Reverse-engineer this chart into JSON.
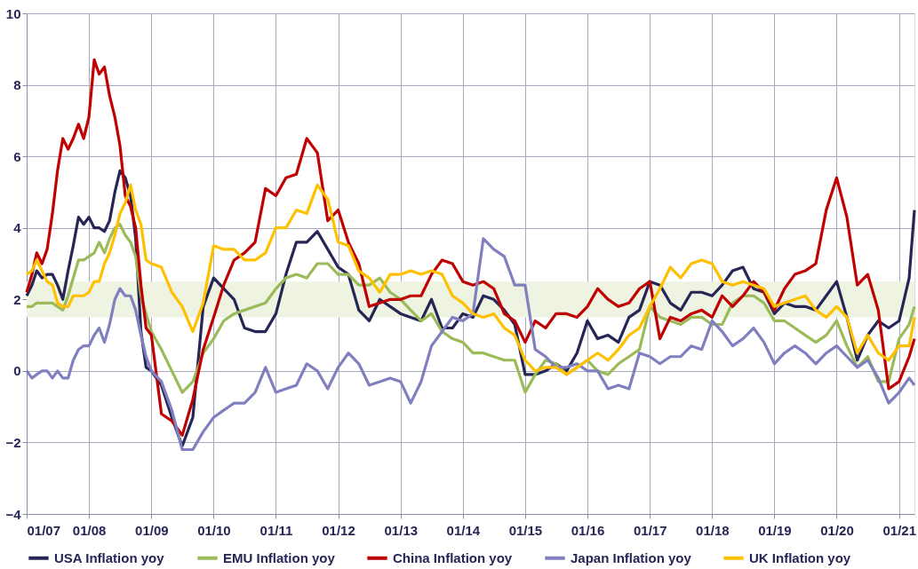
{
  "chart_data": {
    "type": "line",
    "x": [
      "2007-01",
      "2007-02",
      "2007-03",
      "2007-04",
      "2007-05",
      "2007-06",
      "2007-07",
      "2007-08",
      "2007-09",
      "2007-10",
      "2007-11",
      "2007-12",
      "2008-01",
      "2008-02",
      "2008-03",
      "2008-04",
      "2008-05",
      "2008-06",
      "2008-07",
      "2008-08",
      "2008-09",
      "2008-10",
      "2008-11",
      "2008-12",
      "2009-01",
      "2009-03",
      "2009-05",
      "2009-07",
      "2009-09",
      "2009-11",
      "2010-01",
      "2010-03",
      "2010-05",
      "2010-07",
      "2010-09",
      "2010-11",
      "2011-01",
      "2011-03",
      "2011-05",
      "2011-07",
      "2011-09",
      "2011-11",
      "2012-01",
      "2012-03",
      "2012-05",
      "2012-07",
      "2012-09",
      "2012-11",
      "2013-01",
      "2013-03",
      "2013-05",
      "2013-07",
      "2013-09",
      "2013-11",
      "2014-01",
      "2014-03",
      "2014-05",
      "2014-07",
      "2014-09",
      "2014-11",
      "2015-01",
      "2015-03",
      "2015-05",
      "2015-07",
      "2015-09",
      "2015-11",
      "2016-01",
      "2016-03",
      "2016-05",
      "2016-07",
      "2016-09",
      "2016-11",
      "2017-01",
      "2017-03",
      "2017-05",
      "2017-07",
      "2017-09",
      "2017-11",
      "2018-01",
      "2018-03",
      "2018-05",
      "2018-07",
      "2018-09",
      "2018-11",
      "2019-01",
      "2019-03",
      "2019-05",
      "2019-07",
      "2019-09",
      "2019-11",
      "2020-01",
      "2020-03",
      "2020-05",
      "2020-07",
      "2020-09",
      "2020-11",
      "2021-01",
      "2021-03",
      "2021-04"
    ],
    "series": [
      {
        "name": "USA Inflation yoy",
        "color": "#262656",
        "values": [
          2.1,
          2.4,
          2.8,
          2.6,
          2.7,
          2.7,
          2.4,
          2.0,
          2.8,
          3.5,
          4.3,
          4.1,
          4.3,
          4.0,
          4.0,
          3.9,
          4.2,
          5.0,
          5.6,
          5.4,
          4.9,
          3.7,
          1.1,
          0.1,
          0.0,
          -0.4,
          -1.3,
          -2.1,
          -1.3,
          1.8,
          2.6,
          2.3,
          2.0,
          1.2,
          1.1,
          1.1,
          1.6,
          2.7,
          3.6,
          3.6,
          3.9,
          3.4,
          2.9,
          2.7,
          1.7,
          1.4,
          2.0,
          1.8,
          1.6,
          1.5,
          1.4,
          2.0,
          1.2,
          1.2,
          1.6,
          1.5,
          2.1,
          2.0,
          1.7,
          1.3,
          -0.1,
          -0.1,
          0.0,
          0.2,
          0.0,
          0.5,
          1.4,
          0.9,
          1.0,
          0.8,
          1.5,
          1.7,
          2.5,
          2.4,
          1.9,
          1.7,
          2.2,
          2.2,
          2.1,
          2.4,
          2.8,
          2.9,
          2.3,
          2.2,
          1.6,
          1.9,
          1.8,
          1.8,
          1.7,
          2.1,
          2.5,
          1.5,
          0.3,
          1.0,
          1.4,
          1.2,
          1.4,
          2.6,
          4.5
        ]
      },
      {
        "name": "EMU Inflation yoy",
        "color": "#9bbb59",
        "values": [
          1.8,
          1.8,
          1.9,
          1.9,
          1.9,
          1.9,
          1.8,
          1.7,
          2.1,
          2.6,
          3.1,
          3.1,
          3.2,
          3.3,
          3.6,
          3.3,
          3.7,
          4.0,
          4.1,
          3.8,
          3.6,
          3.2,
          2.1,
          1.6,
          1.1,
          0.6,
          0.0,
          -0.6,
          -0.3,
          0.5,
          0.9,
          1.4,
          1.6,
          1.7,
          1.8,
          1.9,
          2.3,
          2.6,
          2.7,
          2.6,
          3.0,
          3.0,
          2.7,
          2.7,
          2.4,
          2.4,
          2.6,
          2.2,
          2.0,
          1.7,
          1.4,
          1.6,
          1.1,
          0.9,
          0.8,
          0.5,
          0.5,
          0.4,
          0.3,
          0.3,
          -0.6,
          -0.1,
          0.3,
          0.2,
          -0.1,
          0.1,
          0.3,
          0.0,
          -0.1,
          0.2,
          0.4,
          0.6,
          1.8,
          1.5,
          1.4,
          1.3,
          1.5,
          1.5,
          1.3,
          1.3,
          1.9,
          2.1,
          2.1,
          1.9,
          1.4,
          1.4,
          1.2,
          1.0,
          0.8,
          1.0,
          1.4,
          0.7,
          0.1,
          0.4,
          -0.3,
          -0.3,
          0.9,
          1.3,
          1.8
        ]
      },
      {
        "name": "China Inflation yoy",
        "color": "#c00000",
        "values": [
          2.2,
          2.7,
          3.3,
          3.0,
          3.4,
          4.4,
          5.6,
          6.5,
          6.2,
          6.5,
          6.9,
          6.5,
          7.1,
          8.7,
          8.3,
          8.5,
          7.7,
          7.1,
          6.3,
          4.9,
          4.6,
          4.0,
          2.4,
          1.2,
          1.0,
          -1.2,
          -1.4,
          -1.8,
          -0.8,
          0.6,
          1.5,
          2.4,
          3.1,
          3.3,
          3.6,
          5.1,
          4.9,
          5.4,
          5.5,
          6.5,
          6.1,
          4.2,
          4.5,
          3.6,
          3.0,
          1.8,
          1.9,
          2.0,
          2.0,
          2.1,
          2.1,
          2.7,
          3.1,
          3.0,
          2.5,
          2.4,
          2.5,
          2.3,
          1.6,
          1.4,
          0.8,
          1.4,
          1.2,
          1.6,
          1.6,
          1.5,
          1.8,
          2.3,
          2.0,
          1.8,
          1.9,
          2.3,
          2.5,
          0.9,
          1.5,
          1.4,
          1.6,
          1.7,
          1.5,
          2.1,
          1.8,
          2.1,
          2.5,
          2.2,
          1.7,
          2.3,
          2.7,
          2.8,
          3.0,
          4.5,
          5.4,
          4.3,
          2.4,
          2.7,
          1.7,
          -0.5,
          -0.3,
          0.4,
          0.9
        ]
      },
      {
        "name": "Japan Inflation yoy",
        "color": "#8080c0",
        "values": [
          0.0,
          -0.2,
          -0.1,
          0.0,
          0.0,
          -0.2,
          0.0,
          -0.2,
          -0.2,
          0.3,
          0.6,
          0.7,
          0.7,
          1.0,
          1.2,
          0.8,
          1.3,
          2.0,
          2.3,
          2.1,
          2.1,
          1.7,
          1.0,
          0.4,
          0.0,
          -0.3,
          -1.1,
          -2.2,
          -2.2,
          -1.7,
          -1.3,
          -1.1,
          -0.9,
          -0.9,
          -0.6,
          0.1,
          -0.6,
          -0.5,
          -0.4,
          0.2,
          0.0,
          -0.5,
          0.1,
          0.5,
          0.2,
          -0.4,
          -0.3,
          -0.2,
          -0.3,
          -0.9,
          -0.3,
          0.7,
          1.1,
          1.5,
          1.4,
          1.6,
          3.7,
          3.4,
          3.2,
          2.4,
          2.4,
          0.6,
          0.4,
          0.1,
          0.1,
          0.2,
          0.0,
          0.0,
          -0.5,
          -0.4,
          -0.5,
          0.5,
          0.4,
          0.2,
          0.4,
          0.4,
          0.7,
          0.6,
          1.4,
          1.1,
          0.7,
          0.9,
          1.2,
          0.8,
          0.2,
          0.5,
          0.7,
          0.5,
          0.2,
          0.5,
          0.7,
          0.4,
          0.1,
          0.3,
          -0.2,
          -0.9,
          -0.6,
          -0.2,
          -0.4
        ]
      },
      {
        "name": "UK Inflation yoy",
        "color": "#ffc000",
        "values": [
          2.7,
          2.8,
          3.1,
          2.8,
          2.5,
          2.4,
          1.9,
          1.8,
          1.8,
          2.1,
          2.1,
          2.1,
          2.2,
          2.5,
          2.5,
          3.0,
          3.3,
          3.8,
          4.4,
          4.7,
          5.2,
          4.5,
          4.1,
          3.1,
          3.0,
          2.9,
          2.2,
          1.8,
          1.1,
          1.9,
          3.5,
          3.4,
          3.4,
          3.1,
          3.1,
          3.3,
          4.0,
          4.0,
          4.5,
          4.4,
          5.2,
          4.8,
          3.6,
          3.5,
          2.8,
          2.6,
          2.2,
          2.7,
          2.7,
          2.8,
          2.7,
          2.8,
          2.7,
          2.1,
          1.9,
          1.6,
          1.5,
          1.6,
          1.2,
          1.0,
          0.3,
          0.0,
          0.1,
          0.1,
          -0.1,
          0.1,
          0.3,
          0.5,
          0.3,
          0.6,
          1.0,
          1.2,
          1.8,
          2.3,
          2.9,
          2.6,
          3.0,
          3.1,
          3.0,
          2.5,
          2.4,
          2.5,
          2.4,
          2.3,
          1.8,
          1.9,
          2.0,
          2.1,
          1.7,
          1.5,
          1.8,
          1.5,
          0.5,
          1.0,
          0.5,
          0.3,
          0.7,
          0.7,
          1.5
        ]
      }
    ],
    "xlim": [
      "2007-01",
      "2021-04"
    ],
    "xticks": [
      {
        "value": "2007-01",
        "label": "01/07"
      },
      {
        "value": "2008-01",
        "label": "01/08"
      },
      {
        "value": "2009-01",
        "label": "01/09"
      },
      {
        "value": "2010-01",
        "label": "01/10"
      },
      {
        "value": "2011-01",
        "label": "01/11"
      },
      {
        "value": "2012-01",
        "label": "01/12"
      },
      {
        "value": "2013-01",
        "label": "01/13"
      },
      {
        "value": "2014-01",
        "label": "01/14"
      },
      {
        "value": "2015-01",
        "label": "01/15"
      },
      {
        "value": "2016-01",
        "label": "01/16"
      },
      {
        "value": "2017-01",
        "label": "01/17"
      },
      {
        "value": "2018-01",
        "label": "01/18"
      },
      {
        "value": "2019-01",
        "label": "01/19"
      },
      {
        "value": "2020-01",
        "label": "01/20"
      },
      {
        "value": "2021-01",
        "label": "01/21"
      }
    ],
    "ylim": [
      -4,
      10
    ],
    "yticks": [
      -4,
      -2,
      0,
      2,
      4,
      6,
      8,
      10
    ],
    "bands": [
      {
        "axis": "y",
        "from": 1.5,
        "to": 2.5,
        "color": "#eef3e2"
      }
    ],
    "grid": true,
    "legend": "bottom",
    "line_style": "solid"
  }
}
